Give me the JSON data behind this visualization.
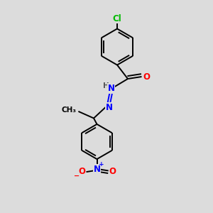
{
  "background_color": "#dcdcdc",
  "bond_color": "#000000",
  "atom_colors": {
    "Cl": "#00bb00",
    "O": "#ff0000",
    "N": "#0000ff",
    "H": "#555555",
    "C": "#000000"
  },
  "figsize": [
    3.0,
    3.0
  ],
  "dpi": 100,
  "xlim": [
    0,
    10
  ],
  "ylim": [
    0,
    10
  ],
  "bond_lw": 1.4,
  "font_size_atom": 8.5,
  "font_size_small": 7.5
}
